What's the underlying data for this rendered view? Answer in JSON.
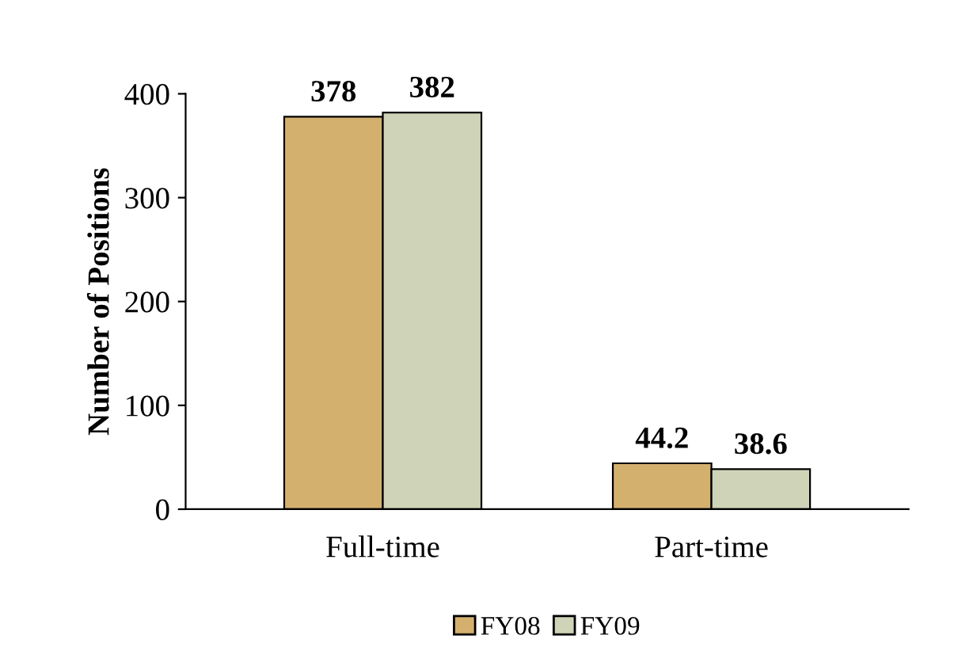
{
  "chart_data": {
    "type": "bar",
    "ylabel": "Number of Positions",
    "categories": [
      "Full-time",
      "Part-time"
    ],
    "series": [
      {
        "name": "FY08",
        "color": "#d4b06f",
        "values": [
          378,
          44.2
        ]
      },
      {
        "name": "FY09",
        "color": "#cfd4b8",
        "values": [
          382,
          38.6
        ]
      }
    ],
    "ylim": [
      0,
      400
    ],
    "yticks": [
      0,
      100,
      200,
      300,
      400
    ],
    "grid": false,
    "legend": "bottom",
    "data_labels": true
  }
}
